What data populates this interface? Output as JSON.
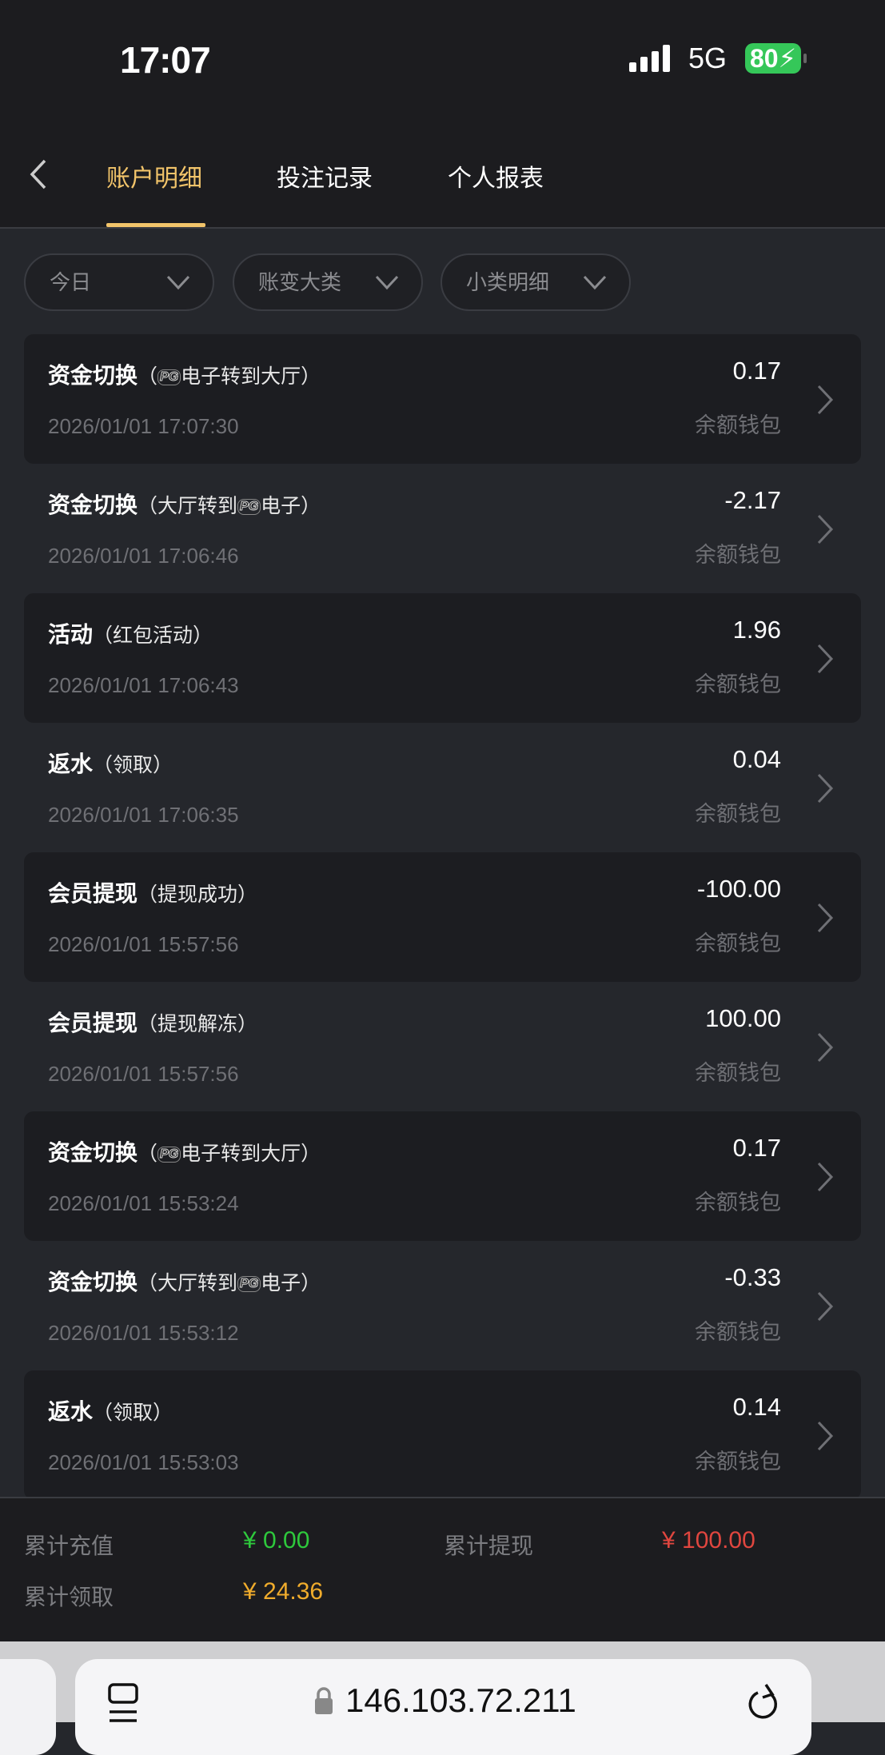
{
  "status_bar": {
    "time": "17:07",
    "network": "5G",
    "battery": "80"
  },
  "tabs": [
    {
      "label": "账户明细",
      "active": true
    },
    {
      "label": "投注记录",
      "active": false
    },
    {
      "label": "个人报表",
      "active": false
    }
  ],
  "filters": [
    {
      "label": "今日"
    },
    {
      "label": "账变大类"
    },
    {
      "label": "小类明细"
    }
  ],
  "records": [
    {
      "type": "资金切换",
      "desc_prefix": "（",
      "logo": "PG",
      "desc_suffix": "电子转到大厅）",
      "date": "2026/01/01 17:07:30",
      "amount": "0.17",
      "wallet": "余额钱包"
    },
    {
      "type": "资金切换",
      "desc_prefix": "（大厅转到",
      "logo": "PG",
      "desc_suffix": "电子）",
      "date": "2026/01/01 17:06:46",
      "amount": "-2.17",
      "wallet": "余额钱包"
    },
    {
      "type": "活动",
      "desc_prefix": "（红包活动）",
      "logo": null,
      "desc_suffix": "",
      "date": "2026/01/01 17:06:43",
      "amount": "1.96",
      "wallet": "余额钱包"
    },
    {
      "type": "返水",
      "desc_prefix": "（领取）",
      "logo": null,
      "desc_suffix": "",
      "date": "2026/01/01 17:06:35",
      "amount": "0.04",
      "wallet": "余额钱包"
    },
    {
      "type": "会员提现",
      "desc_prefix": "（提现成功）",
      "logo": null,
      "desc_suffix": "",
      "date": "2026/01/01 15:57:56",
      "amount": "-100.00",
      "wallet": "余额钱包"
    },
    {
      "type": "会员提现",
      "desc_prefix": "（提现解冻）",
      "logo": null,
      "desc_suffix": "",
      "date": "2026/01/01 15:57:56",
      "amount": "100.00",
      "wallet": "余额钱包"
    },
    {
      "type": "资金切换",
      "desc_prefix": "（",
      "logo": "PG",
      "desc_suffix": "电子转到大厅）",
      "date": "2026/01/01 15:53:24",
      "amount": "0.17",
      "wallet": "余额钱包"
    },
    {
      "type": "资金切换",
      "desc_prefix": "（大厅转到",
      "logo": "PG",
      "desc_suffix": "电子）",
      "date": "2026/01/01 15:53:12",
      "amount": "-0.33",
      "wallet": "余额钱包"
    },
    {
      "type": "返水",
      "desc_prefix": "（领取）",
      "logo": null,
      "desc_suffix": "",
      "date": "2026/01/01 15:53:03",
      "amount": "0.14",
      "wallet": "余额钱包"
    }
  ],
  "summary": {
    "deposit_label": "累计充值",
    "deposit_value": "¥ 0.00",
    "deposit_color": "#2ec93c",
    "withdraw_label": "累计提现",
    "withdraw_value": "¥ 100.00",
    "withdraw_color": "#e0463f",
    "claimed_label": "累计领取",
    "claimed_value": "¥ 24.36",
    "claimed_color": "#f0ac2c"
  },
  "browser": {
    "url": "146.103.72.211"
  },
  "colors": {
    "accent": "#f2c46a"
  }
}
